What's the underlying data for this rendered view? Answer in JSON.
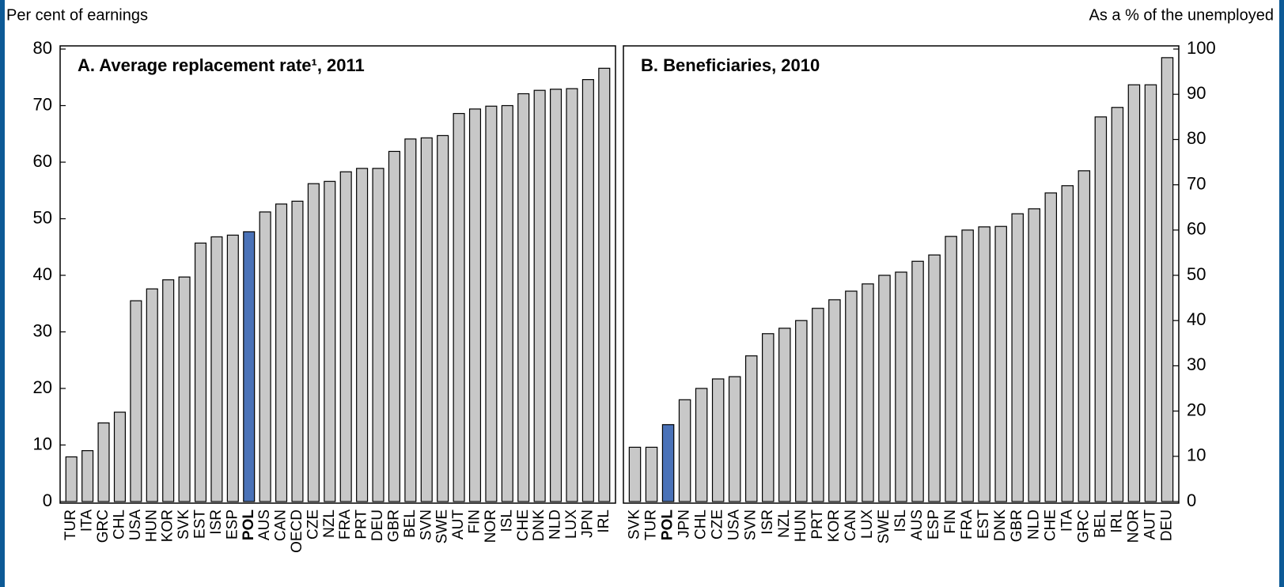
{
  "chart_data": [
    {
      "type": "bar",
      "title": "A. Average replacement rate¹, 2011",
      "y_label": "Per cent of earnings",
      "y_axis_side": "left",
      "categories": [
        "TUR",
        "ITA",
        "GRC",
        "CHL",
        "USA",
        "HUN",
        "KOR",
        "SVK",
        "EST",
        "ISR",
        "ESP",
        "POL",
        "AUS",
        "CAN",
        "OECD",
        "CZE",
        "NZL",
        "FRA",
        "PRT",
        "DEU",
        "GBR",
        "BEL",
        "SVN",
        "SWE",
        "AUT",
        "FIN",
        "NOR",
        "ISL",
        "CHE",
        "DNK",
        "NLD",
        "LUX",
        "JPN",
        "IRL"
      ],
      "values": [
        7.9,
        9.0,
        13.9,
        15.8,
        35.5,
        37.6,
        39.2,
        39.7,
        45.7,
        46.8,
        47.1,
        47.7,
        51.2,
        52.6,
        53.1,
        56.2,
        56.6,
        58.3,
        58.9,
        58.9,
        61.9,
        64.1,
        64.3,
        64.7,
        68.6,
        69.4,
        69.9,
        70.0,
        72.1,
        72.7,
        72.9,
        73.0,
        74.6,
        76.6
      ],
      "color": "#c8c8c8",
      "highlight": "POL",
      "highlight_color": "#4a72b8",
      "ylim": [
        0,
        80
      ],
      "yticks": [
        0,
        10,
        20,
        30,
        40,
        50,
        60,
        70,
        80
      ]
    },
    {
      "type": "bar",
      "title": "B. Beneficiaries, 2010",
      "y_label": "As a % of the unemployed",
      "y_axis_side": "right",
      "categories": [
        "SVK",
        "TUR",
        "POL",
        "JPN",
        "CHL",
        "CZE",
        "USA",
        "SVN",
        "ISR",
        "NZL",
        "HUN",
        "PRT",
        "KOR",
        "CAN",
        "LUX",
        "SWE",
        "ISL",
        "AUS",
        "ESP",
        "FIN",
        "FRA",
        "EST",
        "DNK",
        "GBR",
        "NLD",
        "CHE",
        "ITA",
        "GRC",
        "BEL",
        "IRL",
        "NOR",
        "AUT",
        "DEU"
      ],
      "values": [
        12.0,
        12.0,
        17.0,
        22.5,
        25.0,
        27.1,
        27.6,
        32.2,
        37.1,
        38.3,
        40.0,
        42.7,
        44.6,
        46.5,
        48.1,
        50.0,
        50.7,
        53.1,
        54.5,
        58.6,
        60.0,
        60.7,
        60.8,
        63.6,
        64.7,
        68.2,
        69.8,
        73.1,
        85.0,
        87.1,
        92.1,
        92.1,
        98.1
      ],
      "color": "#c8c8c8",
      "highlight": "POL",
      "highlight_color": "#4a72b8",
      "ylim": [
        0,
        100
      ],
      "yticks": [
        0,
        10,
        20,
        30,
        40,
        50,
        60,
        70,
        80,
        90,
        100
      ]
    }
  ]
}
